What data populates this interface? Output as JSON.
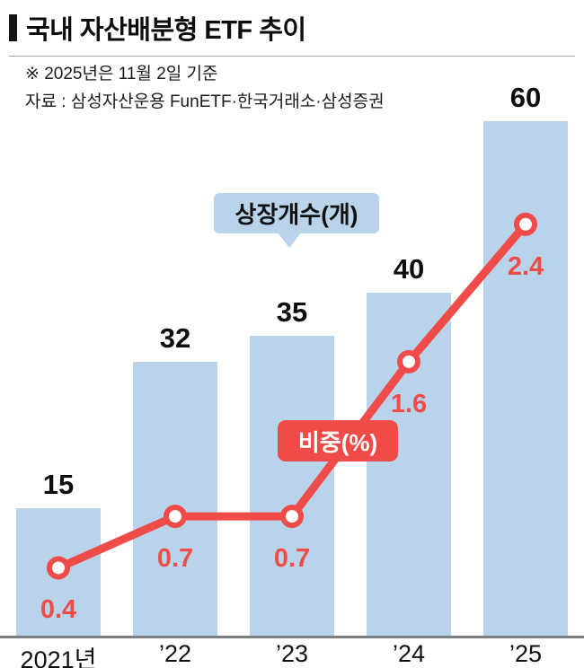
{
  "header": {
    "title": "국내 자산배분형 ETF 추이",
    "note": "※ 2025년은 11월 2일 기준",
    "source": "자료 : 삼성자산운용 FunETF·한국거래소·삼성증권"
  },
  "chart_data": {
    "type": "bar",
    "subtype": "bar-with-line-overlay",
    "categories": [
      "2021년",
      "’22",
      "’23",
      "’24",
      "’25"
    ],
    "series": [
      {
        "name": "상장개수(개)",
        "type": "bar",
        "values": [
          15,
          32,
          35,
          40,
          60
        ]
      },
      {
        "name": "비중(%)",
        "type": "line",
        "values": [
          0.4,
          0.7,
          0.7,
          1.6,
          2.4
        ]
      }
    ],
    "bar_axis": {
      "min": 0,
      "max": 60
    },
    "line_axis": {
      "min": 0,
      "max": 3
    },
    "grid": false,
    "legend_position": "inline-callouts",
    "colors": {
      "bar": "#b9d4ea",
      "line": "#ee4b49",
      "bar_label": "#0d0d0d",
      "line_label": "#ee4b49",
      "axis": "#7e7e7e"
    }
  }
}
